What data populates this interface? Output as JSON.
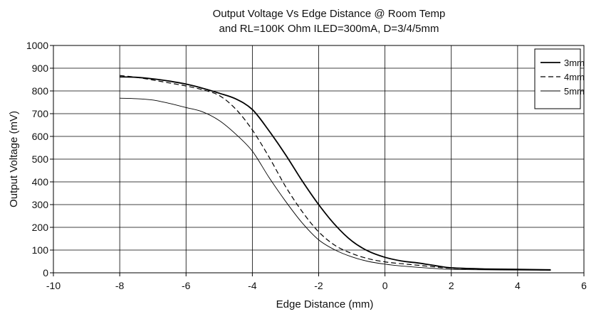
{
  "chart_data": {
    "type": "line",
    "title_lines": [
      "Output Voltage Vs Edge Distance @ Room Temp",
      "and RL=100K Ohm ILED=300mA, D=3/4/5mm"
    ],
    "xlabel": "Edge Distance (mm)",
    "ylabel": "Output Voltage (mV)",
    "xlim": [
      -10,
      6
    ],
    "ylim": [
      0,
      1000
    ],
    "xticks": [
      "-10",
      "-8",
      "-6",
      "-4",
      "-2",
      "0",
      "2",
      "4",
      "6"
    ],
    "yticks": [
      "0",
      "100",
      "200",
      "300",
      "400",
      "500",
      "600",
      "700",
      "800",
      "900",
      "1000"
    ],
    "grid": true,
    "legend_position": "top-right",
    "series": [
      {
        "name": "3mm",
        "style": "solid-thick",
        "color": "#000000",
        "x": [
          -8,
          -7.5,
          -7,
          -6.5,
          -6,
          -5.5,
          -5,
          -4.5,
          -4,
          -3.5,
          -3,
          -2.5,
          -2,
          -1.5,
          -1,
          -0.5,
          0,
          0.5,
          1,
          1.5,
          2,
          3,
          4,
          5
        ],
        "y": [
          862,
          860,
          853,
          843,
          830,
          812,
          790,
          765,
          718,
          625,
          520,
          405,
          300,
          210,
          140,
          95,
          68,
          52,
          43,
          32,
          22,
          17,
          15,
          13
        ]
      },
      {
        "name": "4mm",
        "style": "dashed",
        "color": "#000000",
        "x": [
          -8,
          -7.5,
          -7,
          -6.5,
          -6,
          -5.5,
          -5,
          -4.5,
          -4,
          -3.5,
          -3,
          -2.5,
          -2,
          -1.5,
          -1,
          -0.5,
          0,
          0.5,
          1,
          1.5,
          2,
          3,
          4,
          5
        ],
        "y": [
          868,
          860,
          848,
          835,
          822,
          805,
          780,
          720,
          628,
          510,
          380,
          270,
          180,
          120,
          85,
          62,
          48,
          40,
          33,
          26,
          20,
          16,
          14,
          12
        ]
      },
      {
        "name": "5mm",
        "style": "solid-thin",
        "color": "#000000",
        "x": [
          -8,
          -7.5,
          -7,
          -6.5,
          -6,
          -5.5,
          -5,
          -4.5,
          -4,
          -3.5,
          -3,
          -2.5,
          -2,
          -1.5,
          -1,
          -0.5,
          0,
          0.5,
          1,
          1.5,
          2,
          3,
          4,
          5
        ],
        "y": [
          768,
          766,
          760,
          745,
          727,
          708,
          670,
          610,
          535,
          420,
          315,
          220,
          145,
          100,
          70,
          50,
          38,
          30,
          24,
          19,
          15,
          13,
          12,
          11
        ]
      }
    ]
  }
}
